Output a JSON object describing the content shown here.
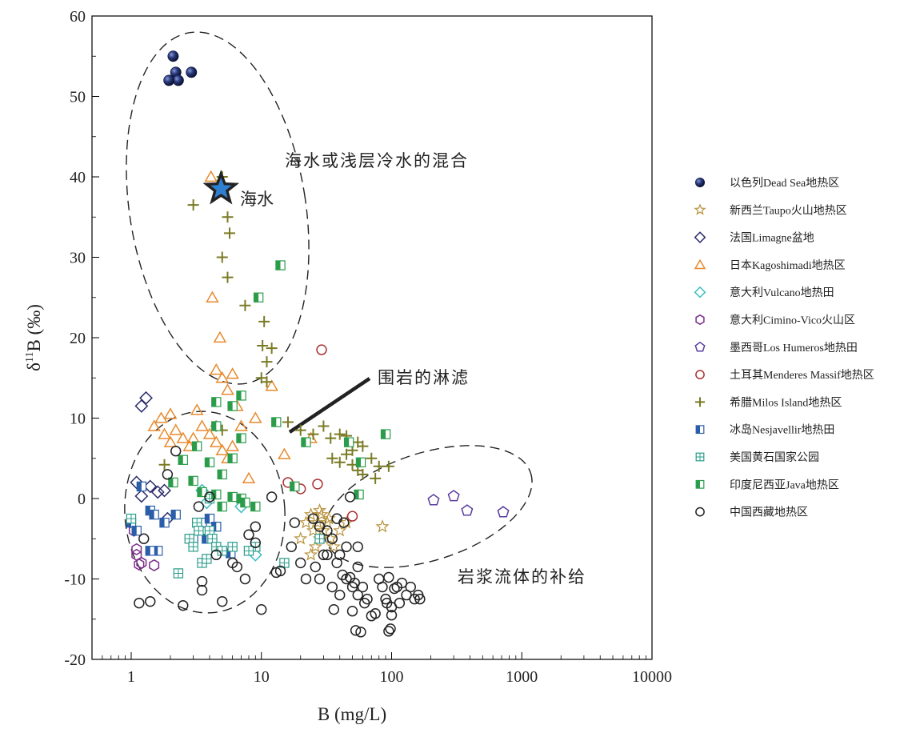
{
  "chart_data": {
    "type": "scatter",
    "xscale": "log",
    "xlabel": "B (mg/L)",
    "ylabel_main": "δ",
    "ylabel_sup": "11",
    "ylabel_rest": "B (‰)",
    "xlim": [
      0.5,
      10000
    ],
    "ylim": [
      -20,
      60
    ],
    "xticks": [
      1,
      10,
      100,
      1000,
      10000
    ],
    "xtick_labels": [
      "1",
      "10",
      "100",
      "1000",
      "10000"
    ],
    "yticks": [
      -20,
      -10,
      0,
      10,
      20,
      30,
      40,
      50,
      60
    ],
    "ytick_labels": [
      "-20",
      "-10",
      "0",
      "10",
      "20",
      "30",
      "40",
      "50",
      "60"
    ],
    "grid": false,
    "legend_position": "right",
    "series": [
      {
        "name": "以色列Dead Sea地热区",
        "marker": "sphere",
        "color": "#1a2a5e",
        "points": [
          [
            2.1,
            55
          ],
          [
            2.2,
            53
          ],
          [
            2.3,
            52
          ],
          [
            2.9,
            53
          ],
          [
            1.95,
            52
          ]
        ]
      },
      {
        "name": "新西兰Taupo火山地热区",
        "marker": "star",
        "color": "#b8913a",
        "points": [
          [
            20,
            -5
          ],
          [
            22,
            -3
          ],
          [
            24,
            -2
          ],
          [
            25,
            -4
          ],
          [
            26,
            -6
          ],
          [
            27,
            -3
          ],
          [
            28,
            -5
          ],
          [
            29,
            -2
          ],
          [
            30,
            -4
          ],
          [
            32,
            -3
          ],
          [
            34,
            -5
          ],
          [
            36,
            -6
          ],
          [
            24,
            -7
          ],
          [
            28,
            -1.5
          ],
          [
            33,
            -2.5
          ],
          [
            40,
            -4
          ],
          [
            45,
            -3
          ],
          [
            85,
            -3.5
          ]
        ]
      },
      {
        "name": "法国Limagne盆地",
        "marker": "diamond",
        "color": "#2b2b6b",
        "points": [
          [
            1.2,
            11.5
          ],
          [
            1.3,
            12.5
          ],
          [
            1.1,
            2
          ],
          [
            1.4,
            1.5
          ],
          [
            1.6,
            0.8
          ],
          [
            1.8,
            1
          ],
          [
            1.2,
            0.3
          ],
          [
            1.9,
            -2.5
          ]
        ]
      },
      {
        "name": "日本Kagoshimadi地热区",
        "marker": "triangle",
        "color": "#e8892c",
        "points": [
          [
            1.5,
            9
          ],
          [
            1.7,
            10
          ],
          [
            1.8,
            8
          ],
          [
            2,
            7
          ],
          [
            2.2,
            8.5
          ],
          [
            2.5,
            7.5
          ],
          [
            2.8,
            6.5
          ],
          [
            3.2,
            11
          ],
          [
            3.5,
            9
          ],
          [
            4,
            8
          ],
          [
            4.5,
            7
          ],
          [
            5,
            6
          ],
          [
            5.5,
            5
          ],
          [
            6,
            6.5
          ],
          [
            6.5,
            11.5
          ],
          [
            7,
            9
          ],
          [
            4.2,
            25
          ],
          [
            4.8,
            20
          ],
          [
            4.5,
            16
          ],
          [
            5,
            15
          ],
          [
            5.5,
            13.5
          ],
          [
            6,
            15.5
          ],
          [
            9,
            10
          ],
          [
            12,
            14
          ],
          [
            15,
            5.5
          ],
          [
            24,
            7.5
          ],
          [
            8,
            2.5
          ],
          [
            3,
            7.5
          ],
          [
            2,
            10.5
          ],
          [
            4.1,
            40
          ]
        ]
      },
      {
        "name": "意大利Vulcano地热田",
        "marker": "diamond",
        "color": "#3cbcc4",
        "points": [
          [
            3.5,
            1
          ],
          [
            3.8,
            -0.5
          ],
          [
            9,
            -7
          ],
          [
            7,
            -1
          ]
        ]
      },
      {
        "name": "意大利Cimino-Vico火山区",
        "marker": "hexagon",
        "color": "#7a2d8a",
        "points": [
          [
            1.05,
            -4
          ],
          [
            1.1,
            -7
          ],
          [
            1.15,
            -8.2
          ],
          [
            1.2,
            -8
          ],
          [
            1.5,
            -8.3
          ],
          [
            1.1,
            -6.3
          ]
        ]
      },
      {
        "name": "墨西哥Los Humeros地热田",
        "marker": "pentagon",
        "color": "#5b3c9e",
        "points": [
          [
            210,
            -0.2
          ],
          [
            300,
            0.3
          ],
          [
            380,
            -1.5
          ],
          [
            720,
            -1.7
          ]
        ]
      },
      {
        "name": "土耳其Menderes Massif地热区",
        "marker": "circle",
        "color": "#a83232",
        "points": [
          [
            29,
            18.5
          ],
          [
            16,
            2
          ],
          [
            27,
            1.8
          ],
          [
            50,
            -2.2
          ],
          [
            20,
            1.2
          ]
        ]
      },
      {
        "name": "希腊Milos Island地热区",
        "marker": "plus",
        "color": "#7a7a24",
        "points": [
          [
            3,
            36.5
          ],
          [
            5.5,
            35
          ],
          [
            5.7,
            33
          ],
          [
            5,
            30
          ],
          [
            5.5,
            27.5
          ],
          [
            7.5,
            24
          ],
          [
            10.5,
            22
          ],
          [
            10.2,
            19
          ],
          [
            12,
            18.7
          ],
          [
            11,
            17
          ],
          [
            10,
            15
          ],
          [
            11,
            14.5
          ],
          [
            16,
            9.5
          ],
          [
            20,
            8.5
          ],
          [
            25,
            8
          ],
          [
            30,
            9
          ],
          [
            34,
            7.5
          ],
          [
            40,
            8
          ],
          [
            45,
            7.8
          ],
          [
            50,
            6
          ],
          [
            55,
            7
          ],
          [
            60,
            6.5
          ],
          [
            70,
            5
          ],
          [
            35,
            5
          ],
          [
            40,
            4.5
          ],
          [
            45,
            5.5
          ],
          [
            50,
            4.2
          ],
          [
            55,
            3.5
          ],
          [
            60,
            3
          ],
          [
            75,
            2.5
          ],
          [
            80,
            4
          ],
          [
            95,
            4
          ],
          [
            4.5,
            9
          ],
          [
            5,
            8.5
          ],
          [
            1.8,
            4.2
          ],
          [
            5,
            40
          ]
        ]
      },
      {
        "name": "冰岛Nesjavellir地热田",
        "marker": "half-square",
        "color": "#2a5ea8",
        "points": [
          [
            1,
            -3
          ],
          [
            1.1,
            -4
          ],
          [
            1.2,
            1.5
          ],
          [
            1.4,
            -1.5
          ],
          [
            1.5,
            -2
          ],
          [
            1.6,
            -6.5
          ],
          [
            1.8,
            -3
          ],
          [
            2.2,
            -2
          ],
          [
            3,
            -5
          ],
          [
            3.5,
            -3
          ],
          [
            4,
            -2.5
          ],
          [
            4.5,
            -3.5
          ],
          [
            3.8,
            -5
          ],
          [
            5.8,
            -6.8
          ],
          [
            1.4,
            -6.5
          ]
        ]
      },
      {
        "name": "美国黄石国家公园",
        "marker": "grid-square",
        "color": "#2a9c8c",
        "points": [
          [
            1,
            -2.5
          ],
          [
            2.3,
            -9.3
          ],
          [
            2.8,
            -5
          ],
          [
            3,
            -6
          ],
          [
            3.2,
            -3
          ],
          [
            3.5,
            -8
          ],
          [
            3.8,
            -7.5
          ],
          [
            4,
            -4
          ],
          [
            4.2,
            -5
          ],
          [
            4.5,
            -6
          ],
          [
            5,
            -6.5
          ],
          [
            6,
            -6
          ],
          [
            9,
            -6
          ],
          [
            8,
            -6.5
          ],
          [
            4,
            0
          ],
          [
            3.3,
            -4
          ],
          [
            15,
            -8
          ],
          [
            28,
            -5
          ]
        ]
      },
      {
        "name": "印度尼西亚Java地热区",
        "marker": "half-square-green",
        "color": "#2a9c4a",
        "points": [
          [
            14,
            29
          ],
          [
            9.5,
            25
          ],
          [
            7,
            12.8
          ],
          [
            4.5,
            12
          ],
          [
            6,
            11.5
          ],
          [
            7,
            7.5
          ],
          [
            4.5,
            9
          ],
          [
            3.2,
            6.5
          ],
          [
            2.5,
            4.8
          ],
          [
            4,
            4.5
          ],
          [
            5,
            3
          ],
          [
            6,
            5
          ],
          [
            2.1,
            2
          ],
          [
            3,
            2.2
          ],
          [
            3.5,
            0.8
          ],
          [
            4.5,
            0.5
          ],
          [
            6,
            0.2
          ],
          [
            7,
            0
          ],
          [
            5,
            -1
          ],
          [
            7.5,
            -0.5
          ],
          [
            13,
            9.5
          ],
          [
            22,
            7
          ],
          [
            47,
            7
          ],
          [
            90,
            8
          ],
          [
            56,
            0.5
          ],
          [
            58,
            4.5
          ],
          [
            18,
            1.5
          ],
          [
            9,
            -1
          ]
        ]
      },
      {
        "name": "中国西藏地热区",
        "marker": "circle",
        "color": "#222222",
        "points": [
          [
            1.15,
            -13
          ],
          [
            1.4,
            -12.8
          ],
          [
            2.5,
            -13.3
          ],
          [
            1.25,
            -5
          ],
          [
            1.9,
            3
          ],
          [
            2.2,
            5.9
          ],
          [
            3.5,
            -10.3
          ],
          [
            3.5,
            -11.4
          ],
          [
            4,
            0.2
          ],
          [
            4.5,
            -7
          ],
          [
            5,
            -12.8
          ],
          [
            6,
            -8
          ],
          [
            6.5,
            -8.5
          ],
          [
            7.5,
            -10
          ],
          [
            8,
            -4.5
          ],
          [
            9,
            -3.5
          ],
          [
            9,
            -5.5
          ],
          [
            10,
            -13.8
          ],
          [
            12,
            0.2
          ],
          [
            13,
            -9.2
          ],
          [
            14,
            -9
          ],
          [
            17,
            -6
          ],
          [
            18,
            -3
          ],
          [
            20,
            -8
          ],
          [
            22,
            -10
          ],
          [
            25,
            -2.5
          ],
          [
            26,
            -8.5
          ],
          [
            28,
            -10
          ],
          [
            30,
            -7
          ],
          [
            32,
            -4
          ],
          [
            35,
            -5
          ],
          [
            35,
            -11
          ],
          [
            36,
            -13.8
          ],
          [
            38,
            -8
          ],
          [
            40,
            -7
          ],
          [
            40,
            -12
          ],
          [
            42,
            -9.5
          ],
          [
            45,
            -10
          ],
          [
            45,
            -6
          ],
          [
            48,
            -9.8
          ],
          [
            50,
            -11
          ],
          [
            50,
            -14
          ],
          [
            52,
            -10.5
          ],
          [
            53,
            -16.4
          ],
          [
            55,
            -12
          ],
          [
            55,
            -8.5
          ],
          [
            58,
            -16.6
          ],
          [
            60,
            -11
          ],
          [
            62,
            -13
          ],
          [
            65,
            -12.5
          ],
          [
            70,
            -14.6
          ],
          [
            75,
            -14.3
          ],
          [
            80,
            -10
          ],
          [
            85,
            -11
          ],
          [
            90,
            -12.5
          ],
          [
            92,
            -13
          ],
          [
            95,
            -9.8
          ],
          [
            98,
            -16.2
          ],
          [
            100,
            -14.5
          ],
          [
            100,
            -13.5
          ],
          [
            105,
            -11.2
          ],
          [
            110,
            -11
          ],
          [
            115,
            -13
          ],
          [
            120,
            -10.5
          ],
          [
            130,
            -12
          ],
          [
            140,
            -11
          ],
          [
            150,
            -12.5
          ],
          [
            160,
            -12
          ],
          [
            165,
            -12.5
          ],
          [
            48,
            0.2
          ],
          [
            38,
            -2.5
          ],
          [
            43,
            -3
          ],
          [
            55,
            -6
          ],
          [
            95,
            -16.5
          ],
          [
            28,
            -3.5
          ],
          [
            32,
            -7
          ],
          [
            3.3,
            -1
          ]
        ]
      }
    ],
    "annotations": {
      "seawater_label": "海水",
      "mixing_label": "海水或浅层冷水的混合",
      "leaching_label": "围岩的淋滤",
      "magma_label": "岩浆流体的补给"
    },
    "seawater_point": [
      4.9,
      38.5
    ]
  }
}
